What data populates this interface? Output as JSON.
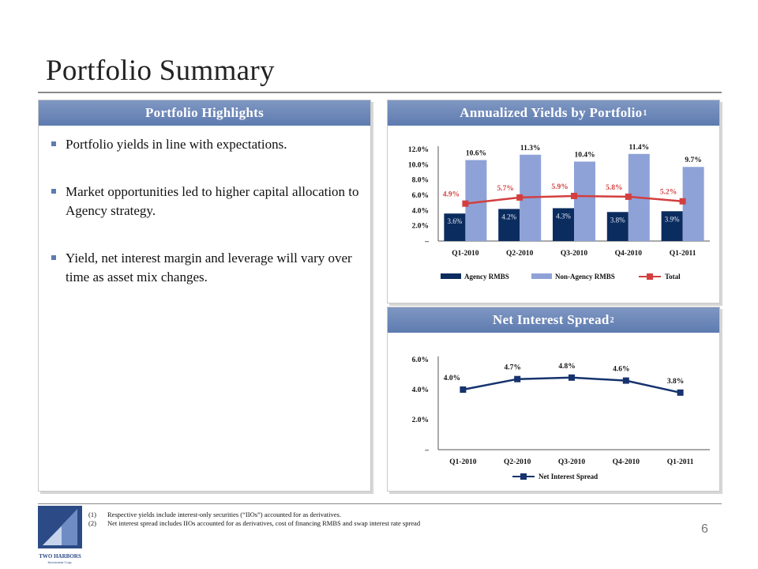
{
  "slide": {
    "title": "Portfolio Summary",
    "page_number": "6"
  },
  "highlights": {
    "header": "Portfolio Highlights",
    "bullets": [
      "Portfolio yields in line with expectations.",
      "Market opportunities led to higher capital allocation to Agency strategy.",
      "Yield, net interest margin and leverage will vary over time as asset mix changes."
    ]
  },
  "yields_panel": {
    "header": "Annualized Yields by Portfolio",
    "header_sup": "1"
  },
  "spread_panel": {
    "header": "Net Interest Spread",
    "header_sup": "2"
  },
  "footnotes": [
    {
      "mark": "(1)",
      "text": "Respective yields include interest-only securities (“IIOs”) accounted for as derivatives."
    },
    {
      "mark": "(2)",
      "text": "Net interest spread includes IIOs accounted for as derivatives, cost of financing RMBS and swap interest rate spread"
    }
  ],
  "logo": {
    "name": "TWO HARBORS",
    "subtitle": "Investment Corp."
  },
  "colors": {
    "header_blue": "#5e7bb0",
    "agency": "#0b2c5e",
    "non_agency": "#8ea2d8",
    "total_line": "#d33f3f",
    "spread_line": "#16336e"
  },
  "chart_data": [
    {
      "type": "bar",
      "title": "Annualized Yields by Portfolio",
      "categories": [
        "Q1-2010",
        "Q2-2010",
        "Q3-2010",
        "Q4-2010",
        "Q1-2011"
      ],
      "y_ticks": [
        "12.0%",
        "10.0%",
        "8.0%",
        "6.0%",
        "4.0%",
        "2.0%",
        "–"
      ],
      "ylim": [
        0,
        12
      ],
      "series": [
        {
          "name": "Agency RMBS",
          "kind": "bar",
          "values": [
            3.6,
            4.2,
            4.3,
            3.8,
            3.9
          ],
          "labels": [
            "3.6%",
            "4.2%",
            "4.3%",
            "3.8%",
            "3.9%"
          ]
        },
        {
          "name": "Non-Agency RMBS",
          "kind": "bar",
          "values": [
            10.6,
            11.3,
            10.4,
            11.4,
            9.7
          ],
          "labels": [
            "10.6%",
            "11.3%",
            "10.4%",
            "11.4%",
            "9.7%"
          ]
        },
        {
          "name": "Total",
          "kind": "line",
          "values": [
            4.9,
            5.7,
            5.9,
            5.8,
            5.2
          ],
          "labels": [
            "4.9%",
            "5.7%",
            "5.9%",
            "5.8%",
            "5.2%"
          ]
        }
      ],
      "legend": "bottom"
    },
    {
      "type": "line",
      "title": "Net Interest Spread",
      "categories": [
        "Q1-2010",
        "Q2-2010",
        "Q3-2010",
        "Q4-2010",
        "Q1-2011"
      ],
      "y_ticks": [
        "6.0%",
        "4.0%",
        "2.0%",
        "–"
      ],
      "ylim": [
        0,
        6
      ],
      "series": [
        {
          "name": "Net Interest Spread",
          "values": [
            4.0,
            4.7,
            4.8,
            4.6,
            3.8
          ],
          "labels": [
            "4.0%",
            "4.7%",
            "4.8%",
            "4.6%",
            "3.8%"
          ]
        }
      ],
      "legend": "bottom"
    }
  ]
}
